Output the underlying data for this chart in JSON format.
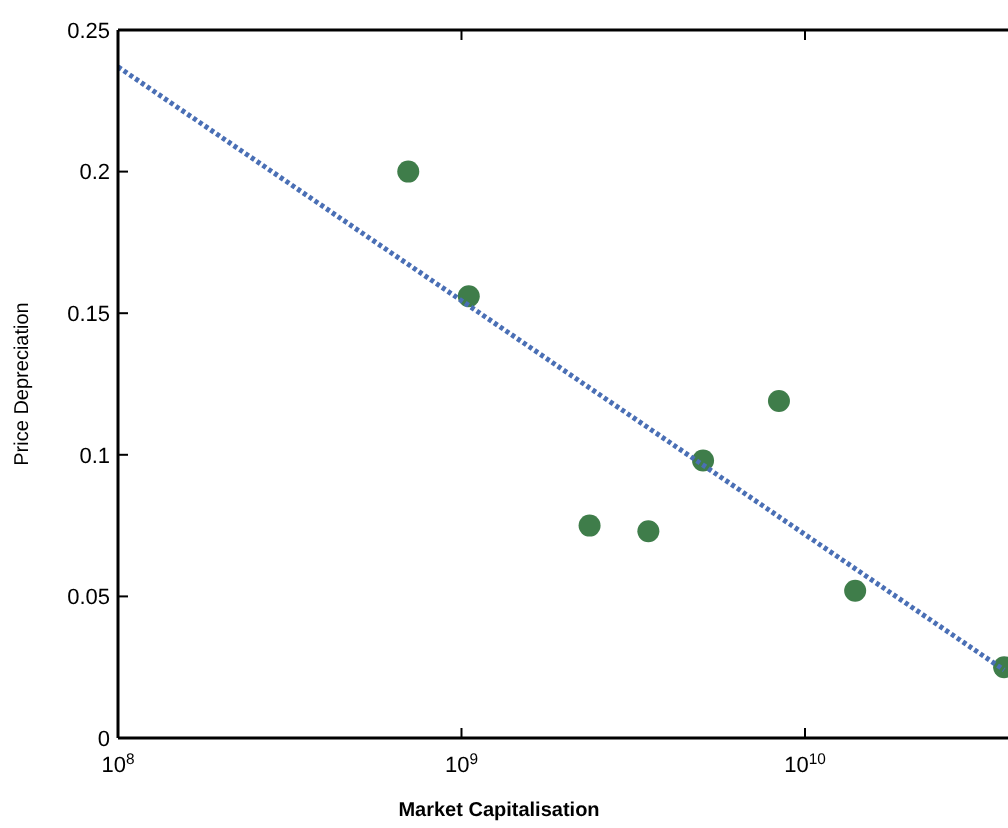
{
  "chart_data": {
    "type": "scatter",
    "xlabel": "Market Capitalisation",
    "ylabel": "Price Depreciation",
    "log": "x",
    "xlim": [
      100000000.0,
      39000000000.0
    ],
    "xticks": [
      {
        "value": 100000000.0,
        "label": "10$^{8}$"
      },
      {
        "value": 1000000000.0,
        "label": "10$^{9}$"
      },
      {
        "value": 10000000000.0,
        "label": "10$^{10}$"
      }
    ],
    "ylim": [
      0,
      0.25
    ],
    "yticks": [
      0,
      0.05,
      0.1,
      0.15,
      0.2,
      0.25
    ],
    "grid": false,
    "series": [
      {
        "color": "#3f7d4a",
        "marker": "circle",
        "x": [
          700000000.0,
          1050000000.0,
          2360000000.0,
          3500000000.0,
          5050000000.0,
          8400000000.0,
          14000000000.0,
          38000000000.0
        ],
        "values": [
          0.2,
          0.156,
          0.075,
          0.073,
          0.098,
          0.119,
          0.052,
          0.025
        ]
      },
      {
        "type": "line",
        "color": "#4a6fb5",
        "line_style": "dotted",
        "marker": "none",
        "x": [
          100000000.0,
          38000000000.0
        ],
        "values": [
          0.237,
          0.024
        ]
      }
    ]
  }
}
